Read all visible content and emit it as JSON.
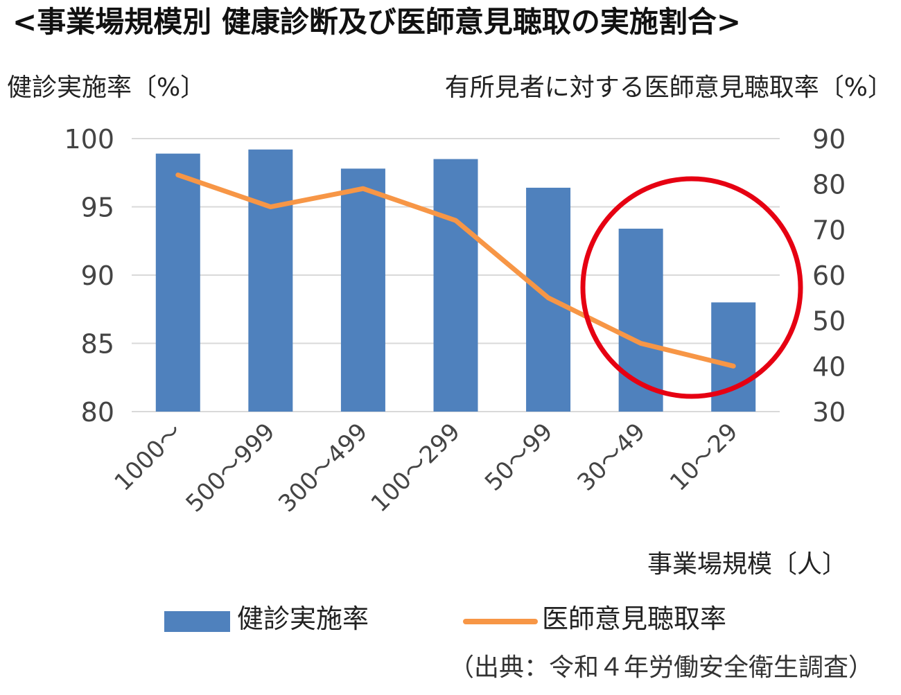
{
  "chart_data": {
    "type": "bar",
    "title": "<事業場規模別 健康診断及び医師意見聴取の実施割合>",
    "ylabel": "健診実施率〔%〕",
    "y2label": "有所見者に対する医師意見聴取率〔%〕",
    "xlabel": "事業場規模〔人〕",
    "categories": [
      "1000〜",
      "500〜999",
      "300〜499",
      "100〜299",
      "50〜99",
      "30〜49",
      "10〜29"
    ],
    "ylim": [
      80,
      100
    ],
    "y_ticks": [
      80,
      85,
      90,
      95,
      100
    ],
    "y2lim": [
      30,
      90
    ],
    "y2_ticks": [
      30,
      40,
      50,
      60,
      70,
      80,
      90
    ],
    "grid": true,
    "legend_position": "bottom",
    "highlight": "red circle around 30〜49 and 10〜29",
    "series": [
      {
        "name": "健診実施率",
        "type": "bar",
        "axis": "left",
        "color": "#4F81BD",
        "values": [
          98.9,
          99.2,
          97.8,
          98.5,
          96.4,
          93.4,
          88.0
        ]
      },
      {
        "name": "医師意見聴取率",
        "type": "line",
        "axis": "right",
        "color": "#F79646",
        "values": [
          82,
          75,
          79,
          72,
          55,
          45,
          40
        ]
      }
    ],
    "source": "（出典：令和４年労働安全衛生調査）"
  }
}
